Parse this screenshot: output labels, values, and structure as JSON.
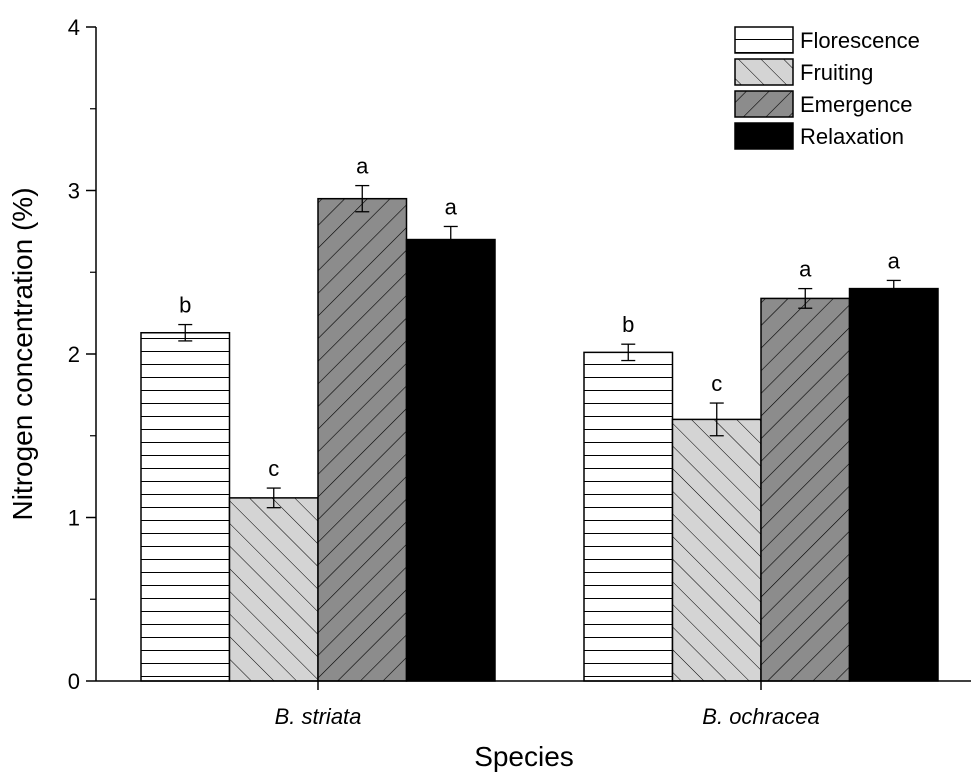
{
  "chart_data": {
    "type": "bar",
    "xlabel": "Species",
    "ylabel": "Nitrogen concentration (%)",
    "ylim": [
      0,
      4
    ],
    "yticks": [
      "0",
      "1",
      "2",
      "3",
      "4"
    ],
    "categories": [
      "B. striata",
      "B. ochracea"
    ],
    "series": [
      {
        "name": "Florescence",
        "values": [
          2.13,
          2.01
        ],
        "errors": [
          0.05,
          0.05
        ],
        "letters": [
          "b",
          "b"
        ],
        "pattern": "horizontal-lines",
        "fill": "#ffffff"
      },
      {
        "name": "Fruiting",
        "values": [
          1.12,
          1.6
        ],
        "errors": [
          0.06,
          0.1
        ],
        "letters": [
          "c",
          "c"
        ],
        "pattern": "diagonal-lines-forward",
        "fill": "#d4d4d4"
      },
      {
        "name": "Emergence",
        "values": [
          2.95,
          2.34
        ],
        "errors": [
          0.08,
          0.06
        ],
        "letters": [
          "a",
          "a"
        ],
        "pattern": "diagonal-lines-backward",
        "fill": "#8c8c8c"
      },
      {
        "name": "Relaxation",
        "values": [
          2.7,
          2.4
        ],
        "errors": [
          0.08,
          0.05
        ],
        "letters": [
          "a",
          "a"
        ],
        "pattern": "solid",
        "fill": "#000000"
      }
    ],
    "legend_position": "top-right",
    "grid": false
  }
}
